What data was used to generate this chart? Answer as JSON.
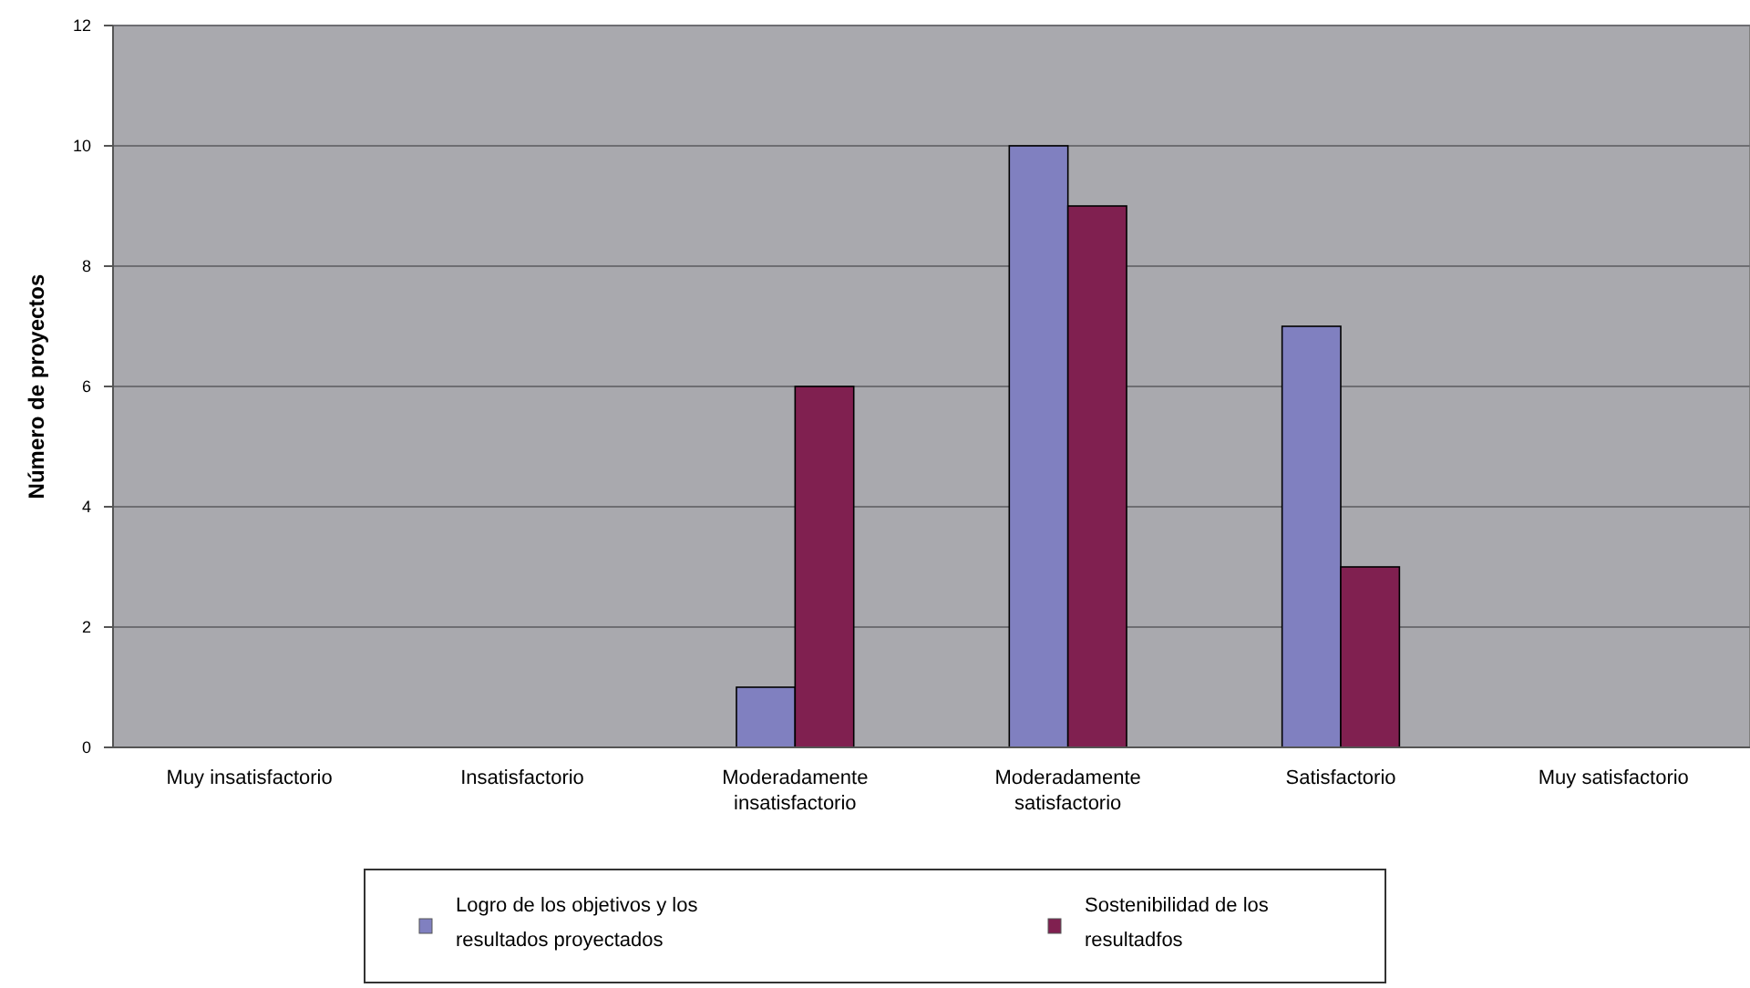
{
  "chart_data": {
    "type": "bar",
    "ylabel": "Número de proyectos",
    "categories": [
      "Muy insatisfactorio",
      "Insatisfactorio",
      "Moderadamente insatisfactorio",
      "Moderadamente satisfactorio",
      "Satisfactorio",
      "Muy satisfactorio"
    ],
    "series": [
      {
        "name": "Logro de los objetivos y los resultados proyectados",
        "color": "#8080c0",
        "values": [
          0,
          0,
          1,
          10,
          7,
          0
        ]
      },
      {
        "name": "Sostenibilidad de los resultadfos",
        "color": "#802050",
        "values": [
          0,
          0,
          6,
          9,
          3,
          0
        ]
      }
    ],
    "ylim": [
      0,
      12
    ],
    "yticks": [
      0,
      2,
      4,
      6,
      8,
      10,
      12
    ],
    "grid": "y",
    "legend": "bottom"
  }
}
